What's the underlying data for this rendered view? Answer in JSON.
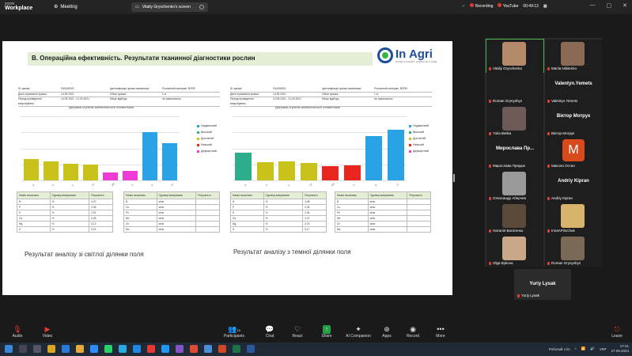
{
  "topbar": {
    "app_line1": "zoom",
    "app_line2": "Workplace",
    "meeting": "Meeting",
    "screen_pill": "Vitaliy Gryschenko's screen",
    "recording": "Recording",
    "youtube": "YouTube",
    "timer": "00:49:13"
  },
  "slide": {
    "title": "В. Операційна ефективність. Результати тканинної діагностики рослин",
    "brand_name": "In Agri",
    "brand_sub": "INTELLIGENT AGRICULTURE",
    "left": {
      "meta": [
        [
          "ID зразка:",
          "FA0042921",
          "Ідентифікація зразка замовника:",
          "Рослинний матеріал, ВЛЯЛ"
        ],
        [
          "Дата отримання зразка:",
          "14.09.2021",
          "Обсяг зразка:",
          "1 кг"
        ],
        [
          "Період проведення випробувань:",
          "14.09.2021 - 21.09.2021",
          "Місце відбору:",
          "не зазначалось"
        ]
      ],
      "chart_title": "Діаграма ступеню забезпеченості елементами",
      "table1": {
        "h1": "Назва показника",
        "h2": "Одиниці вимірювань",
        "h3": "Результати",
        "rows": [
          [
            "N",
            "%",
            "4,07"
          ],
          [
            "P",
            "%",
            "0,36"
          ],
          [
            "K",
            "%",
            "2,02"
          ],
          [
            "Ca",
            "%",
            "0,45"
          ],
          [
            "Mg",
            "%",
            "0,12"
          ],
          [
            "S",
            "%",
            "0,22"
          ]
        ]
      },
      "table2": {
        "h1": "Назва показника",
        "h2": "Одиниці вимірювань",
        "h3": "Результати",
        "rows": [
          [
            "B",
            "мг/кг",
            ""
          ],
          [
            "Cu",
            "мг/кг",
            ""
          ],
          [
            "Fe",
            "мг/кг",
            ""
          ],
          [
            "Mn",
            "мг/кг",
            ""
          ],
          [
            "Zn",
            "мг/кг",
            ""
          ],
          [
            "Mo",
            "мг/кг",
            ""
          ]
        ]
      },
      "caption": "Результат аналізу зі світлої ділянки поля"
    },
    "right": {
      "meta": [
        [
          "ID зразка:",
          "FA0042921",
          "Ідентифікація зразка замовника:",
          "Рослинний матеріал, ВЛЯЛ"
        ],
        [
          "Дата отримання зразка:",
          "14.09.2021",
          "Обсяг зразка:",
          "1 кг"
        ],
        [
          "Період проведення випробувань:",
          "14.09.2021 - 21.09.2021",
          "Місце відбору:",
          "не зазначалось"
        ]
      ],
      "chart_title": "Діаграма ступеню забезпеченості елементами",
      "table1": {
        "h1": "Назва показника",
        "h2": "Одиниці вимірювань",
        "h3": "Результати",
        "rows": [
          [
            "N",
            "%",
            "4,08"
          ],
          [
            "P",
            "%",
            "0,34"
          ],
          [
            "K",
            "%",
            "2,34"
          ],
          [
            "Ca",
            "%",
            "0,37"
          ],
          [
            "Mg",
            "%",
            "0,19"
          ],
          [
            "S",
            "%",
            "0,17"
          ]
        ]
      },
      "table2": {
        "h1": "Назва показника",
        "h2": "Одиниці вимірювань",
        "h3": "Результати",
        "rows": [
          [
            "B",
            "мг/кг",
            ""
          ],
          [
            "Cu",
            "мг/кг",
            ""
          ],
          [
            "Fe",
            "мг/кг",
            ""
          ],
          [
            "Mn",
            "мг/кг",
            ""
          ],
          [
            "Zn",
            "мг/кг",
            ""
          ],
          [
            "Mo",
            "мг/кг",
            ""
          ]
        ]
      },
      "caption": "Результат аналізу з темної ділянки поля"
    }
  },
  "chart_data": [
    {
      "type": "bar",
      "categories": [
        "N",
        "P",
        "K",
        "Ca",
        "Mg",
        "S",
        "B",
        "Cu"
      ],
      "values": [
        33,
        30,
        26,
        25,
        12,
        15,
        75,
        58
      ],
      "ylim": [
        0,
        100
      ],
      "colors": [
        "#c9c21a",
        "#c9c21a",
        "#c9c21a",
        "#c9c21a",
        "#ee3bd6",
        "#ee3bd6",
        "#29a3e6",
        "#29a3e6"
      ],
      "legend": [
        "Надвисокий",
        "Високий",
        "Достатній",
        "Низький",
        "Дефіцитний"
      ],
      "legend_colors": [
        "#29a3e6",
        "#2cae8c",
        "#c9c21a",
        "#e8261f",
        "#ee3bd6"
      ]
    },
    {
      "type": "bar",
      "categories": [
        "N",
        "P",
        "K",
        "Ca",
        "Mg",
        "S",
        "B",
        "Cu"
      ],
      "values": [
        43,
        28,
        30,
        27,
        22,
        23,
        69,
        79
      ],
      "ylim": [
        0,
        100
      ],
      "colors": [
        "#2cae8c",
        "#c9c21a",
        "#c9c21a",
        "#c9c21a",
        "#e8261f",
        "#e8261f",
        "#29a3e6",
        "#29a3e6"
      ],
      "legend": [
        "Надвисокий",
        "Високий",
        "Достатній",
        "Низький",
        "Дефіцитний"
      ],
      "legend_colors": [
        "#29a3e6",
        "#2cae8c",
        "#c9c21a",
        "#e8261f",
        "#ee3bd6"
      ]
    }
  ],
  "gallery": {
    "tiles": [
      {
        "name": "Vitaliy Gryschenko",
        "big": "",
        "face": "#b58a6a",
        "active": true
      },
      {
        "name": "Mariia Nikitenko",
        "big": "",
        "face": "#8a6a55"
      },
      {
        "name": "Roman Grynyshyn",
        "big": ""
      },
      {
        "name": "Valentyn.Yemets",
        "big": "Valentyn.Yemets"
      },
      {
        "name": "Yulia Bielka",
        "big": "",
        "face": "#6b5a55"
      },
      {
        "name": "Віктор Мотрук",
        "big": "Віктор Мотрук"
      },
      {
        "name": "Мирослава Прядюк",
        "big": "Мирослава Пр..."
      },
      {
        "name": "Микола Остап",
        "big": "M"
      },
      {
        "name": "Олександр Аберчев",
        "big": "",
        "face": "#9a9a9a"
      },
      {
        "name": "Andriy Kipran",
        "big": "Andriy Kipran"
      },
      {
        "name": "Наталія Багатенко",
        "big": "",
        "face": "#5a4a3a"
      },
      {
        "name": "InnaAPiluChuk",
        "big": "",
        "face": "#d8b36b"
      },
      {
        "name": "Olga Bykova",
        "big": "",
        "face": "#c9a88a"
      },
      {
        "name": "Roman Grynyshyn",
        "big": "",
        "face": "#7a6a55"
      }
    ],
    "extra": {
      "big": "Yuriy Lysak",
      "name": "Yuriy Lysak"
    }
  },
  "toolbar": {
    "audio": "Audio",
    "video": "Video",
    "participants": "Participants",
    "participants_count": "15",
    "chat": "Chat",
    "react": "React",
    "share": "Share",
    "ai": "AI Companion",
    "apps": "Apps",
    "record": "Record",
    "more": "More",
    "leave": "Leave"
  },
  "taskbar": {
    "desktop": "Робочий стіл",
    "lang": "УКР",
    "time": "17:41",
    "date": "27.09.2024"
  }
}
